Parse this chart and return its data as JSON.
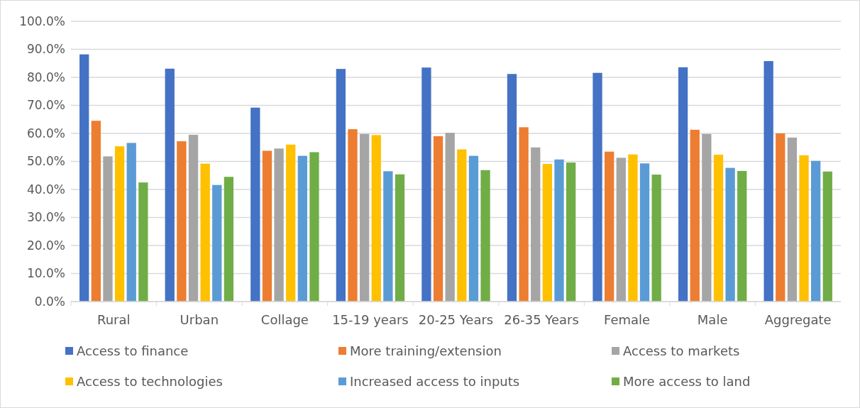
{
  "chart_data": {
    "type": "bar",
    "categories": [
      "Rural",
      "Urban",
      "Collage",
      "15-19 years",
      "20-25 Years",
      "26-35 Years",
      "Female",
      "Male",
      "Aggregate"
    ],
    "series": [
      {
        "name": "Access to finance",
        "color": "#4472c4",
        "values": [
          88.2,
          83.1,
          69.2,
          83.0,
          83.5,
          81.2,
          81.6,
          83.6,
          85.8
        ]
      },
      {
        "name": "More training/extension",
        "color": "#ed7d31",
        "values": [
          64.5,
          57.2,
          53.8,
          61.5,
          59.0,
          62.2,
          53.5,
          61.3,
          60.0
        ]
      },
      {
        "name": "Access to markets",
        "color": "#a5a5a5",
        "values": [
          51.8,
          59.5,
          54.6,
          59.8,
          60.2,
          55.0,
          51.3,
          59.8,
          58.5
        ]
      },
      {
        "name": "Access to technologies",
        "color": "#ffc000",
        "values": [
          55.4,
          49.2,
          56.0,
          59.4,
          54.3,
          49.1,
          52.5,
          52.4,
          52.2
        ]
      },
      {
        "name": "Increased access to inputs",
        "color": "#5b9bd5",
        "values": [
          56.6,
          41.6,
          52.0,
          46.5,
          52.0,
          50.7,
          49.3,
          47.7,
          50.2
        ]
      },
      {
        "name": "More access to land",
        "color": "#70ad47",
        "values": [
          42.5,
          44.5,
          53.3,
          45.4,
          46.9,
          49.6,
          45.3,
          46.6,
          46.4
        ]
      }
    ],
    "ylim": [
      0,
      100
    ],
    "yticks": [
      {
        "value": 0,
        "label": "0.0%"
      },
      {
        "value": 10,
        "label": "10.0%"
      },
      {
        "value": 20,
        "label": "20.0%"
      },
      {
        "value": 30,
        "label": "30.0%"
      },
      {
        "value": 40,
        "label": "40.0%"
      },
      {
        "value": 50,
        "label": "50.0%"
      },
      {
        "value": 60,
        "label": "60.0%"
      },
      {
        "value": 70,
        "label": "70.0%"
      },
      {
        "value": 80,
        "label": "80.0%"
      },
      {
        "value": 90,
        "label": "90.0%"
      },
      {
        "value": 100,
        "label": "100.0%"
      }
    ],
    "grid": "y",
    "legend": "bottom"
  }
}
